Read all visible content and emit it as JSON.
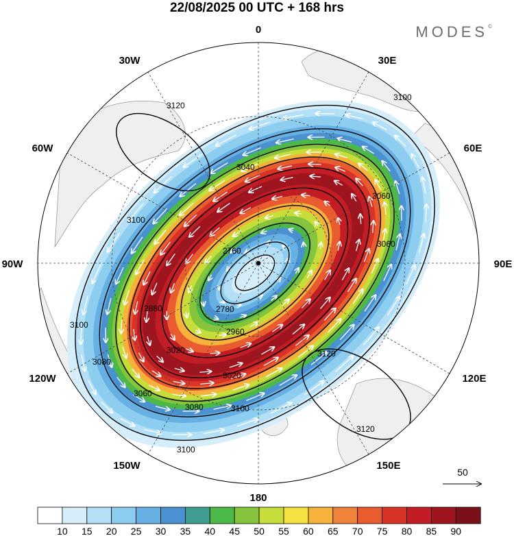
{
  "header": {
    "title": "22/08/2025  00 UTC  + 168 hrs",
    "brand": "MODES",
    "brand_mark": "©"
  },
  "longitude_labels": [
    "0",
    "30E",
    "60E",
    "90E",
    "120E",
    "150E",
    "180",
    "150W",
    "120W",
    "90W",
    "60W",
    "30W"
  ],
  "reference_vector": {
    "label": "50"
  },
  "colorbar": {
    "ticks": [
      "10",
      "15",
      "20",
      "25",
      "30",
      "35",
      "40",
      "45",
      "50",
      "55",
      "60",
      "65",
      "70",
      "75",
      "80",
      "85",
      "90"
    ],
    "colors": [
      "#ffffff",
      "#d6eefa",
      "#b3e0f7",
      "#8ccdf0",
      "#66b0e3",
      "#4a91cf",
      "#3e9e8f",
      "#4cb848",
      "#86c43d",
      "#c6dd3a",
      "#f5e142",
      "#f7b23b",
      "#f0833a",
      "#e85c30",
      "#d93328",
      "#c21d24",
      "#9e1520",
      "#7a1018"
    ]
  },
  "map": {
    "colors": {
      "land": "#efefef",
      "coast": "#999999",
      "contour": "#000000",
      "grid": "#444444",
      "vectors": "#ffffff"
    },
    "contours": [
      {
        "label": "3120"
      },
      {
        "label": "3100"
      },
      {
        "label": "3080"
      },
      {
        "label": "3060"
      },
      {
        "label": "3040"
      },
      {
        "label": "3020"
      },
      {
        "label": "2960"
      },
      {
        "label": "2880"
      },
      {
        "label": "2780"
      },
      {
        "label": "2760"
      }
    ]
  }
}
